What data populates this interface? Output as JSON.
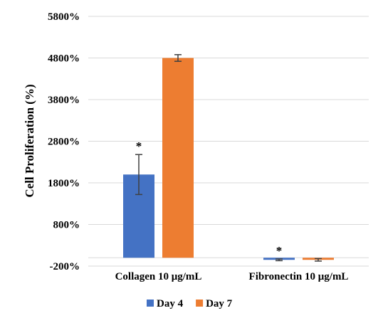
{
  "chart_data": {
    "type": "bar",
    "ylabel": "Cell Proliferation (%)",
    "ylim": [
      -200,
      5800
    ],
    "yticks": [
      "-200%",
      "800%",
      "1800%",
      "2800%",
      "3800%",
      "4800%",
      "5800%"
    ],
    "ytick_values": [
      -200,
      800,
      1800,
      2800,
      3800,
      4800,
      5800
    ],
    "categories": [
      "Collagen 10 μg/mL",
      "Fibronectin 10  μg/mL"
    ],
    "series": [
      {
        "name": "Day 4",
        "color": "#4472C4",
        "values": [
          2000,
          -50
        ],
        "errors": [
          480,
          20
        ],
        "markers": [
          "*",
          "*"
        ]
      },
      {
        "name": "Day 7",
        "color": "#ED7D31",
        "values": [
          4800,
          -50
        ],
        "errors": [
          80,
          30
        ],
        "markers": [
          "",
          ""
        ]
      }
    ],
    "grid": true,
    "legend_position": "bottom"
  }
}
